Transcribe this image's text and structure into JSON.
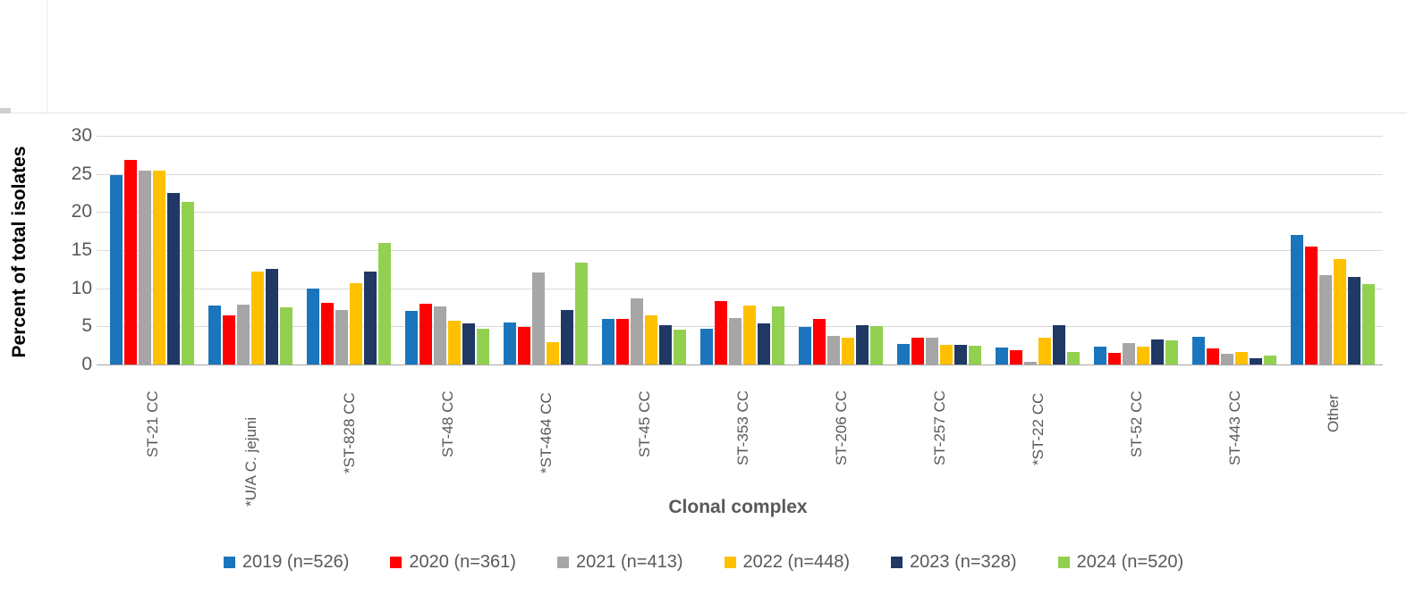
{
  "chart_data": {
    "type": "bar",
    "title": "",
    "xlabel": "Clonal complex",
    "ylabel": "Percent of total isolates",
    "ylim": [
      0,
      30
    ],
    "yticks": [
      0,
      5,
      10,
      15,
      20,
      25,
      30
    ],
    "grid": true,
    "legend_position": "bottom",
    "categories": [
      "ST-21 CC",
      "*U/A C. jejuni",
      "*ST-828 CC",
      "ST-48 CC",
      "*ST-464 CC",
      "ST-45 CC",
      "ST-353 CC",
      "ST-206 CC",
      "ST-257 CC",
      "*ST-22 CC",
      "ST-52 CC",
      "ST-443 CC",
      "Other"
    ],
    "series": [
      {
        "name": "2019 (n=526)",
        "color": "#1b75bc",
        "values": [
          24.9,
          7.7,
          10.0,
          7.0,
          5.5,
          6.0,
          4.7,
          4.9,
          2.7,
          2.2,
          2.3,
          3.6,
          17.0
        ]
      },
      {
        "name": "2020 (n=361)",
        "color": "#ff0000",
        "values": [
          26.8,
          6.5,
          8.1,
          8.0,
          4.9,
          6.0,
          8.3,
          6.0,
          3.5,
          1.9,
          1.5,
          2.1,
          15.5
        ]
      },
      {
        "name": "2021 (n=413)",
        "color": "#a6a6a6",
        "values": [
          25.4,
          7.9,
          7.2,
          7.6,
          12.1,
          8.7,
          6.1,
          3.8,
          3.5,
          0.4,
          2.8,
          1.4,
          11.7
        ]
      },
      {
        "name": "2022 (n=448)",
        "color": "#ffc000",
        "values": [
          25.4,
          12.2,
          10.7,
          5.7,
          2.9,
          6.5,
          7.7,
          3.5,
          2.6,
          3.5,
          2.3,
          1.6,
          13.8
        ]
      },
      {
        "name": "2023 (n=328)",
        "color": "#1f3864",
        "values": [
          22.5,
          12.5,
          12.2,
          5.4,
          7.2,
          5.2,
          5.4,
          5.1,
          2.6,
          5.1,
          3.3,
          0.8,
          11.5
        ]
      },
      {
        "name": "2024 (n=520)",
        "color": "#92d050",
        "values": [
          21.3,
          7.5,
          15.9,
          4.7,
          13.4,
          4.6,
          7.6,
          5.0,
          2.5,
          1.6,
          3.2,
          1.2,
          10.5
        ]
      }
    ]
  }
}
